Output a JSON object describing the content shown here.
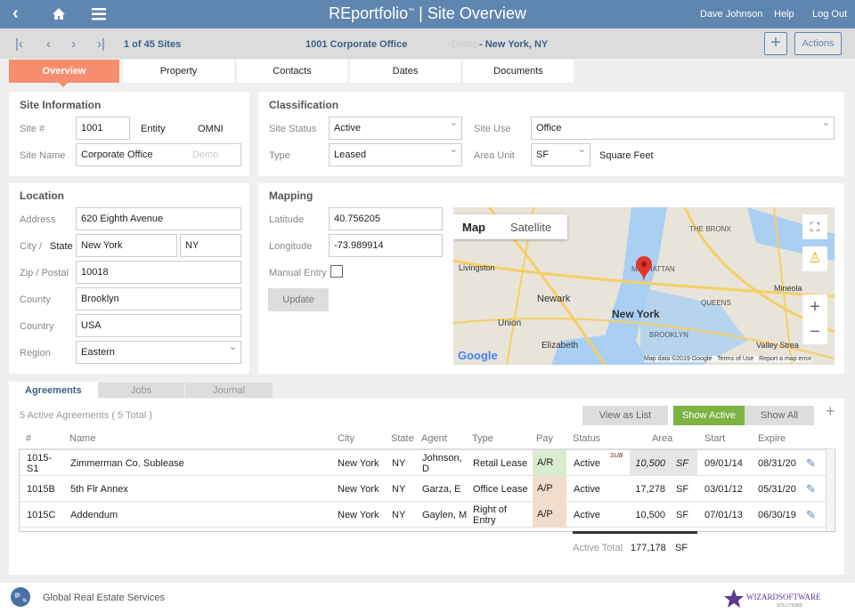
{
  "header": {
    "title": "REportfolio",
    "tm": "™",
    "sep": "|",
    "subtitle": "Site Overview",
    "user": "Dave Johnson",
    "help": "Help",
    "logout": "Log Out"
  },
  "toolbar": {
    "count": "1 of 45 Sites",
    "site": "1001  Corporate Office",
    "demo": "Demo",
    "location": " - New York, NY",
    "add": "+",
    "actions": "Actions"
  },
  "tabs": [
    {
      "label": "Overview"
    },
    {
      "label": "Property"
    },
    {
      "label": "Contacts"
    },
    {
      "label": "Dates"
    },
    {
      "label": "Documents"
    }
  ],
  "site_info": {
    "title": "Site Information",
    "site_no_label": "Site #",
    "site_no": "1001",
    "entity_label": "Entity",
    "entity": "OMNI",
    "name_label": "Site Name",
    "name": "Corporate Office",
    "name_placeholder": "Demo"
  },
  "classification": {
    "title": "Classification",
    "status_label": "Site Status",
    "status": "Active",
    "use_label": "Site Use",
    "use": "Office",
    "type_label": "Type",
    "type": "Leased",
    "unit_label": "Area Unit",
    "unit": "SF",
    "unit_desc": "Square Feet"
  },
  "location": {
    "title": "Location",
    "address_label": "Address",
    "address": "620 Eighth Avenue",
    "city_label": "City /",
    "state_label": "State",
    "city": "New York",
    "state": "NY",
    "zip_label": "Zip / Postal",
    "zip": "10018",
    "county_label": "County",
    "county": "Brooklyn",
    "country_label": "Country",
    "country": "USA",
    "region_label": "Region",
    "region": "Eastern"
  },
  "mapping": {
    "title": "Mapping",
    "lat_label": "Latitude",
    "lat": "40.756205",
    "lon_label": "Longitude",
    "lon": "-73.989914",
    "manual_label": "Manual Entry",
    "manual_checked": false,
    "update": "Update",
    "map": {
      "tab_map": "Map",
      "tab_sat": "Satellite",
      "labels": {
        "ny": "New York",
        "newark": "Newark",
        "union": "Union",
        "elizabeth": "Elizabeth",
        "livingston": "Livingston",
        "brooklyn": "BROOKLYN",
        "queens": "QUEENS",
        "manhattan": "MANHATTAN",
        "bronx": "THE BRONX",
        "mineola": "Mineola",
        "valley": "Valley Strea"
      },
      "google": "Google",
      "footer": "Map data ©2019 Google   Terms of Use   Report a map error"
    }
  },
  "agreements": {
    "tabs": [
      "Agreements",
      "Jobs",
      "Journal"
    ],
    "summary": "5 Active Agreements ( 5 Total )",
    "view_list": "View as List",
    "show_active": "Show Active",
    "show_all": "Show All",
    "add": "+",
    "columns": [
      "#",
      "Name",
      "City",
      "State",
      "Agent",
      "Type",
      "Pay",
      "Status",
      "Area",
      "Start",
      "Expire"
    ],
    "rows": [
      {
        "num": "1015-S1",
        "name": "Zimmerman Co. Sublease",
        "city": "New York",
        "state": "NY",
        "agent": "Johnson, D",
        "type": "Retail Lease",
        "pay": "A/R",
        "status": "Active",
        "sub": "SUB",
        "area": "10,500",
        "unit": "SF",
        "start": "09/01/14",
        "expire": "08/31/20"
      },
      {
        "num": "1015B",
        "name": "5th Flr Annex",
        "city": "New York",
        "state": "NY",
        "agent": "Garza, E",
        "type": "Office Lease",
        "pay": "A/P",
        "status": "Active",
        "sub": "",
        "area": "17,278",
        "unit": "SF",
        "start": "03/01/12",
        "expire": "05/31/20"
      },
      {
        "num": "1015C",
        "name": "Addendum",
        "city": "New York",
        "state": "NY",
        "agent": "Gaylen, M",
        "type": "Right of Entry",
        "pay": "A/P",
        "status": "Active",
        "sub": "",
        "area": "10,500",
        "unit": "SF",
        "start": "07/01/13",
        "expire": "06/30/19"
      }
    ],
    "total_label": "Active Total",
    "total": "177,178",
    "total_unit": "SF"
  },
  "footer": {
    "company": "Global Real Estate Services",
    "logo": "WIZARDSOFTWARE SOLUTIONS"
  },
  "colors": {
    "header": "#5f86b0",
    "tab_active": "#f58e6f",
    "show_active": "#7cb342",
    "pay_ar": "#d9ecd0",
    "pay_ap": "#f2dccb"
  }
}
